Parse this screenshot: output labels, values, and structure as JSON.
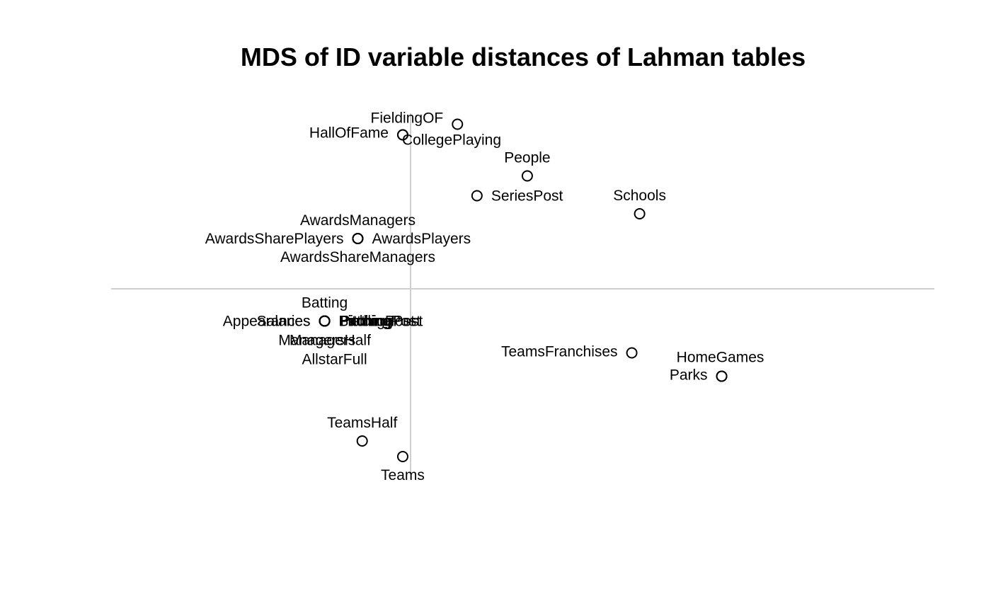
{
  "chart_data": {
    "type": "scatter",
    "title": "MDS of ID variable distances of Lahman tables",
    "xlabel": "",
    "ylabel": "",
    "xlim": [
      -0.6,
      1.1
    ],
    "ylim": [
      -0.55,
      0.55
    ],
    "grid": false,
    "legend": "none",
    "reference_lines": {
      "x": 0,
      "y": 0
    },
    "colors": {
      "points": "#000000",
      "labels": "#000000",
      "reference_lines": "#cfcfcf",
      "background": "#ffffff"
    },
    "points": [
      {
        "label": "FieldingOF",
        "x": 0.096,
        "y": 0.465,
        "label_pos": "top-left"
      },
      {
        "label": "HallOfFame",
        "x": -0.016,
        "y": 0.435,
        "label_pos": "left"
      },
      {
        "label": "CollegePlaying",
        "x": -0.016,
        "y": 0.435,
        "label_pos": "bottom-right"
      },
      {
        "label": "People",
        "x": 0.239,
        "y": 0.319,
        "label_pos": "top"
      },
      {
        "label": "SeriesPost",
        "x": 0.136,
        "y": 0.263,
        "label_pos": "right"
      },
      {
        "label": "Schools",
        "x": 0.469,
        "y": 0.212,
        "label_pos": "top"
      },
      {
        "label": "AwardsManagers",
        "x": -0.108,
        "y": 0.142,
        "label_pos": "top"
      },
      {
        "label": "AwardsSharePlayers",
        "x": -0.108,
        "y": 0.142,
        "label_pos": "left"
      },
      {
        "label": "AwardsPlayers",
        "x": -0.108,
        "y": 0.142,
        "label_pos": "right"
      },
      {
        "label": "AwardsShareManagers",
        "x": -0.108,
        "y": 0.142,
        "label_pos": "bottom"
      },
      {
        "label": "Batting",
        "x": -0.176,
        "y": -0.091,
        "label_pos": "top"
      },
      {
        "label": "Appearances",
        "x": -0.176,
        "y": -0.091,
        "label_pos": "left"
      },
      {
        "label": "Salaries",
        "x": -0.176,
        "y": -0.091,
        "label_pos": "left"
      },
      {
        "label": "Pitching",
        "x": -0.176,
        "y": -0.091,
        "label_pos": "right"
      },
      {
        "label": "BattingPost",
        "x": -0.176,
        "y": -0.091,
        "label_pos": "right"
      },
      {
        "label": "FieldingPost",
        "x": -0.176,
        "y": -0.091,
        "label_pos": "right"
      },
      {
        "label": "PitchingPost",
        "x": -0.176,
        "y": -0.091,
        "label_pos": "right"
      },
      {
        "label": "ManagersHalf",
        "x": -0.176,
        "y": -0.091,
        "label_pos": "bottom"
      },
      {
        "label": "Managers",
        "x": -0.176,
        "y": -0.091,
        "label_pos": "bottom"
      },
      {
        "label": "AllstarFull",
        "x": -0.176,
        "y": -0.091,
        "label_pos": "bottom"
      },
      {
        "label": "TeamsFranchises",
        "x": 0.453,
        "y": -0.181,
        "label_pos": "left"
      },
      {
        "label": "HomeGames",
        "x": 0.637,
        "y": -0.247,
        "label_pos": "top"
      },
      {
        "label": "Parks",
        "x": 0.637,
        "y": -0.247,
        "label_pos": "left"
      },
      {
        "label": "TeamsHalf",
        "x": -0.099,
        "y": -0.43,
        "label_pos": "top"
      },
      {
        "label": "Teams",
        "x": -0.016,
        "y": -0.474,
        "label_pos": "bottom"
      }
    ]
  }
}
